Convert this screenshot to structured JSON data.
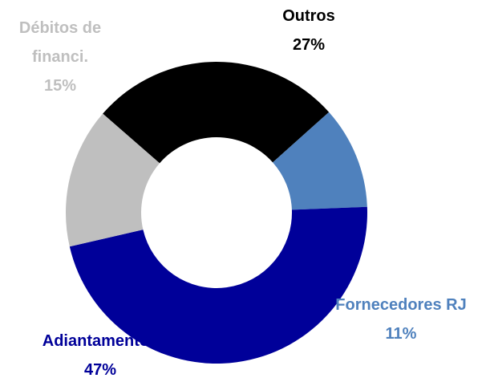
{
  "chart_data": {
    "type": "donut",
    "categories": [
      "Outros",
      "Fornecedores RJ",
      "Adiantamentos",
      "Débitos de financi."
    ],
    "values": [
      27,
      11,
      47,
      15
    ],
    "value_labels": [
      "27%",
      "11%",
      "47%",
      "15%"
    ],
    "colors": [
      "#000000",
      "#4f81bd",
      "#000099",
      "#bfbfbf"
    ]
  }
}
